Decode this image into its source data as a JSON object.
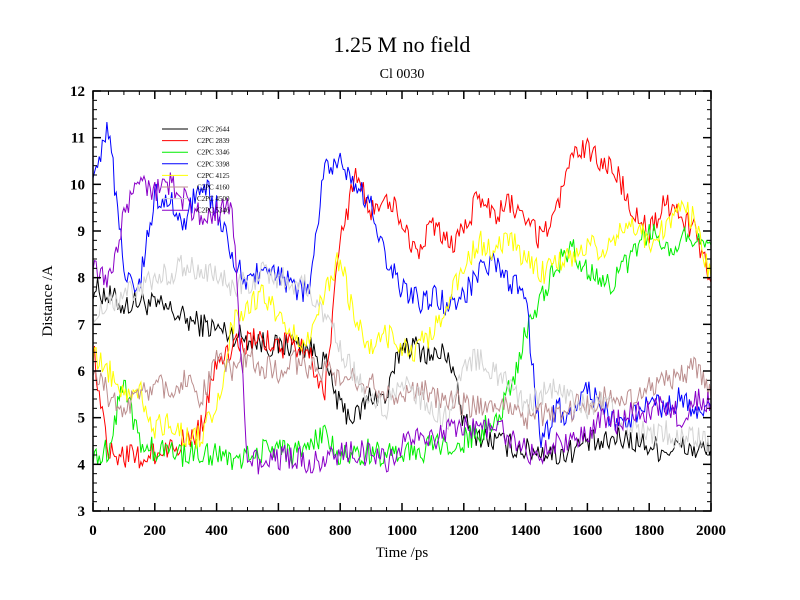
{
  "chart_data": {
    "type": "line",
    "title": "1.25 M no field",
    "subtitle": "Cl 0030",
    "xlabel": "Time /ps",
    "ylabel": "Distance /A",
    "xlim": [
      0,
      2000
    ],
    "ylim": [
      3,
      12
    ],
    "xticks": [
      0,
      200,
      400,
      600,
      800,
      1000,
      1200,
      1400,
      1600,
      1800,
      2000
    ],
    "yticks": [
      3,
      4,
      5,
      6,
      7,
      8,
      9,
      10,
      11,
      12
    ],
    "grid": false,
    "legend_position": "top-left",
    "series": [
      {
        "name": "C2PC 2644",
        "color": "#000000",
        "x": [
          0,
          50,
          100,
          150,
          200,
          250,
          300,
          350,
          400,
          450,
          500,
          550,
          600,
          650,
          700,
          750,
          800,
          850,
          900,
          950,
          1000,
          1050,
          1100,
          1150,
          1200,
          1250,
          1300,
          1350,
          1400,
          1450,
          1500,
          1550,
          1600,
          1650,
          1700,
          1750,
          1800,
          1850,
          1900,
          1950,
          2000
        ],
        "values": [
          7.8,
          7.6,
          7.4,
          7.5,
          7.4,
          7.3,
          7.1,
          7.0,
          6.9,
          6.8,
          6.7,
          6.6,
          6.5,
          6.6,
          6.5,
          6.2,
          5.2,
          5.0,
          5.5,
          5.4,
          6.6,
          6.5,
          6.3,
          6.4,
          4.9,
          4.6,
          4.5,
          4.4,
          4.3,
          4.3,
          4.2,
          4.3,
          4.5,
          4.4,
          4.6,
          4.5,
          4.4,
          4.3,
          4.4,
          4.3,
          4.3
        ]
      },
      {
        "name": "C2PC 2839",
        "color": "#ff0000",
        "x": [
          0,
          50,
          100,
          150,
          200,
          250,
          300,
          350,
          400,
          450,
          500,
          550,
          600,
          650,
          700,
          750,
          800,
          850,
          900,
          950,
          1000,
          1050,
          1100,
          1150,
          1200,
          1250,
          1300,
          1350,
          1400,
          1450,
          1500,
          1550,
          1600,
          1650,
          1700,
          1750,
          1800,
          1850,
          1900,
          1950,
          2000
        ],
        "values": [
          6.5,
          4.3,
          4.2,
          4.1,
          4.2,
          4.4,
          4.5,
          4.8,
          6.3,
          6.5,
          6.6,
          6.7,
          6.5,
          6.6,
          6.4,
          5.5,
          8.8,
          10.2,
          9.4,
          9.8,
          9.2,
          8.5,
          9.1,
          8.7,
          9.0,
          9.8,
          9.3,
          9.6,
          9.2,
          8.8,
          9.5,
          10.5,
          10.8,
          10.5,
          10.2,
          9.3,
          9.0,
          9.6,
          9.3,
          9.0,
          7.9
        ]
      },
      {
        "name": "C2PC 3346",
        "color": "#00ee00",
        "x": [
          0,
          50,
          100,
          150,
          200,
          250,
          300,
          350,
          400,
          450,
          500,
          550,
          600,
          650,
          700,
          750,
          800,
          850,
          900,
          950,
          1000,
          1050,
          1100,
          1150,
          1200,
          1250,
          1300,
          1350,
          1400,
          1450,
          1500,
          1550,
          1600,
          1650,
          1700,
          1750,
          1800,
          1850,
          1900,
          1950,
          2000
        ],
        "values": [
          4.2,
          4.3,
          5.9,
          4.4,
          4.3,
          4.3,
          4.2,
          4.3,
          4.2,
          4.1,
          4.2,
          4.3,
          4.4,
          4.2,
          4.4,
          4.6,
          4.2,
          4.2,
          4.3,
          4.2,
          4.3,
          4.2,
          4.4,
          4.3,
          4.5,
          4.7,
          4.9,
          5.6,
          6.8,
          7.6,
          8.3,
          8.6,
          8.2,
          7.8,
          8.0,
          8.6,
          9.0,
          8.7,
          8.8,
          8.9,
          8.7
        ]
      },
      {
        "name": "C2PC 3398",
        "color": "#0000ff",
        "x": [
          0,
          50,
          100,
          150,
          200,
          250,
          300,
          350,
          400,
          450,
          500,
          550,
          600,
          650,
          700,
          750,
          800,
          850,
          900,
          950,
          1000,
          1050,
          1100,
          1150,
          1200,
          1250,
          1300,
          1350,
          1400,
          1450,
          1500,
          1550,
          1600,
          1650,
          1700,
          1750,
          1800,
          1850,
          1900,
          1950,
          2000
        ],
        "values": [
          10.3,
          11.2,
          8.2,
          7.8,
          9.8,
          9.6,
          9.2,
          10.1,
          9.5,
          8.4,
          7.9,
          8.2,
          8.0,
          7.8,
          7.7,
          10.4,
          10.5,
          10.0,
          9.5,
          8.3,
          7.8,
          7.5,
          7.6,
          7.4,
          7.6,
          8.1,
          8.3,
          7.9,
          7.6,
          4.4,
          5.2,
          5.0,
          5.6,
          5.2,
          4.8,
          5.0,
          5.3,
          5.2,
          5.4,
          5.1,
          5.2
        ]
      },
      {
        "name": "C2PC 4125",
        "color": "#ffff00",
        "x": [
          0,
          50,
          100,
          150,
          200,
          250,
          300,
          350,
          400,
          450,
          500,
          550,
          600,
          650,
          700,
          750,
          800,
          850,
          900,
          950,
          1000,
          1050,
          1100,
          1150,
          1200,
          1250,
          1300,
          1350,
          1400,
          1450,
          1500,
          1550,
          1600,
          1650,
          1700,
          1750,
          1800,
          1850,
          1900,
          1950,
          2000
        ],
        "values": [
          6.3,
          6.0,
          5.5,
          5.6,
          4.8,
          4.9,
          4.6,
          4.6,
          5.2,
          7.0,
          7.4,
          7.6,
          7.2,
          6.8,
          6.6,
          7.8,
          8.4,
          7.0,
          6.5,
          6.8,
          6.4,
          6.5,
          6.8,
          7.5,
          8.2,
          8.8,
          8.5,
          8.9,
          8.4,
          8.1,
          8.3,
          8.4,
          8.8,
          8.6,
          8.9,
          9.1,
          8.8,
          9.0,
          9.5,
          9.2,
          8.0
        ]
      },
      {
        "name": "C2PC 4160",
        "color": "#bc8f8f",
        "x": [
          0,
          50,
          100,
          150,
          200,
          250,
          300,
          350,
          400,
          450,
          500,
          550,
          600,
          650,
          700,
          750,
          800,
          850,
          900,
          950,
          1000,
          1050,
          1100,
          1150,
          1200,
          1250,
          1300,
          1350,
          1400,
          1450,
          1500,
          1550,
          1600,
          1650,
          1700,
          1750,
          1800,
          1850,
          1900,
          1950,
          2000
        ],
        "values": [
          6.0,
          5.5,
          5.2,
          5.4,
          5.8,
          5.6,
          5.9,
          5.4,
          6.2,
          6.0,
          6.3,
          6.1,
          6.0,
          6.2,
          6.1,
          6.0,
          5.9,
          5.8,
          5.7,
          5.6,
          5.5,
          5.6,
          5.5,
          5.4,
          5.3,
          5.2,
          5.3,
          5.2,
          5.0,
          5.1,
          5.0,
          5.2,
          5.3,
          5.4,
          5.5,
          5.3,
          5.6,
          5.8,
          5.9,
          6.1,
          5.4
        ]
      },
      {
        "name": "C2PC 4500",
        "color": "#d3d3d3",
        "x": [
          0,
          50,
          100,
          150,
          200,
          250,
          300,
          350,
          400,
          450,
          500,
          550,
          600,
          650,
          700,
          750,
          800,
          850,
          900,
          950,
          1000,
          1050,
          1100,
          1150,
          1200,
          1250,
          1300,
          1350,
          1400,
          1450,
          1500,
          1550,
          1600,
          1650,
          1700,
          1750,
          1800,
          1850,
          1900,
          1950,
          2000
        ],
        "values": [
          7.2,
          7.4,
          7.6,
          7.8,
          8.0,
          8.1,
          8.3,
          8.2,
          8.0,
          7.8,
          7.9,
          8.1,
          8.0,
          7.9,
          7.8,
          7.2,
          6.5,
          5.9,
          5.4,
          5.2,
          5.8,
          5.5,
          5.2,
          5.0,
          6.1,
          6.3,
          6.0,
          5.6,
          5.3,
          5.5,
          5.6,
          5.4,
          5.2,
          5.3,
          5.0,
          4.8,
          4.6,
          4.7,
          4.5,
          4.6,
          4.5
        ]
      },
      {
        "name": "C2PC 5346",
        "color": "#8a00c8",
        "x": [
          0,
          50,
          100,
          150,
          200,
          250,
          300,
          350,
          400,
          450,
          500,
          550,
          600,
          650,
          700,
          750,
          800,
          850,
          900,
          950,
          1000,
          1050,
          1100,
          1150,
          1200,
          1250,
          1300,
          1350,
          1400,
          1450,
          1500,
          1550,
          1600,
          1650,
          1700,
          1750,
          1800,
          1850,
          1900,
          1950,
          2000
        ],
        "values": [
          8.2,
          7.9,
          9.4,
          10.2,
          9.8,
          10.0,
          9.6,
          9.3,
          9.4,
          9.5,
          4.1,
          4.0,
          4.1,
          4.2,
          4.0,
          4.1,
          4.2,
          4.3,
          4.2,
          4.1,
          4.4,
          4.6,
          4.5,
          4.7,
          4.8,
          4.7,
          4.8,
          4.6,
          4.3,
          4.2,
          4.4,
          4.5,
          4.6,
          5.0,
          4.9,
          5.2,
          5.1,
          5.3,
          5.0,
          5.4,
          5.3
        ]
      }
    ]
  }
}
